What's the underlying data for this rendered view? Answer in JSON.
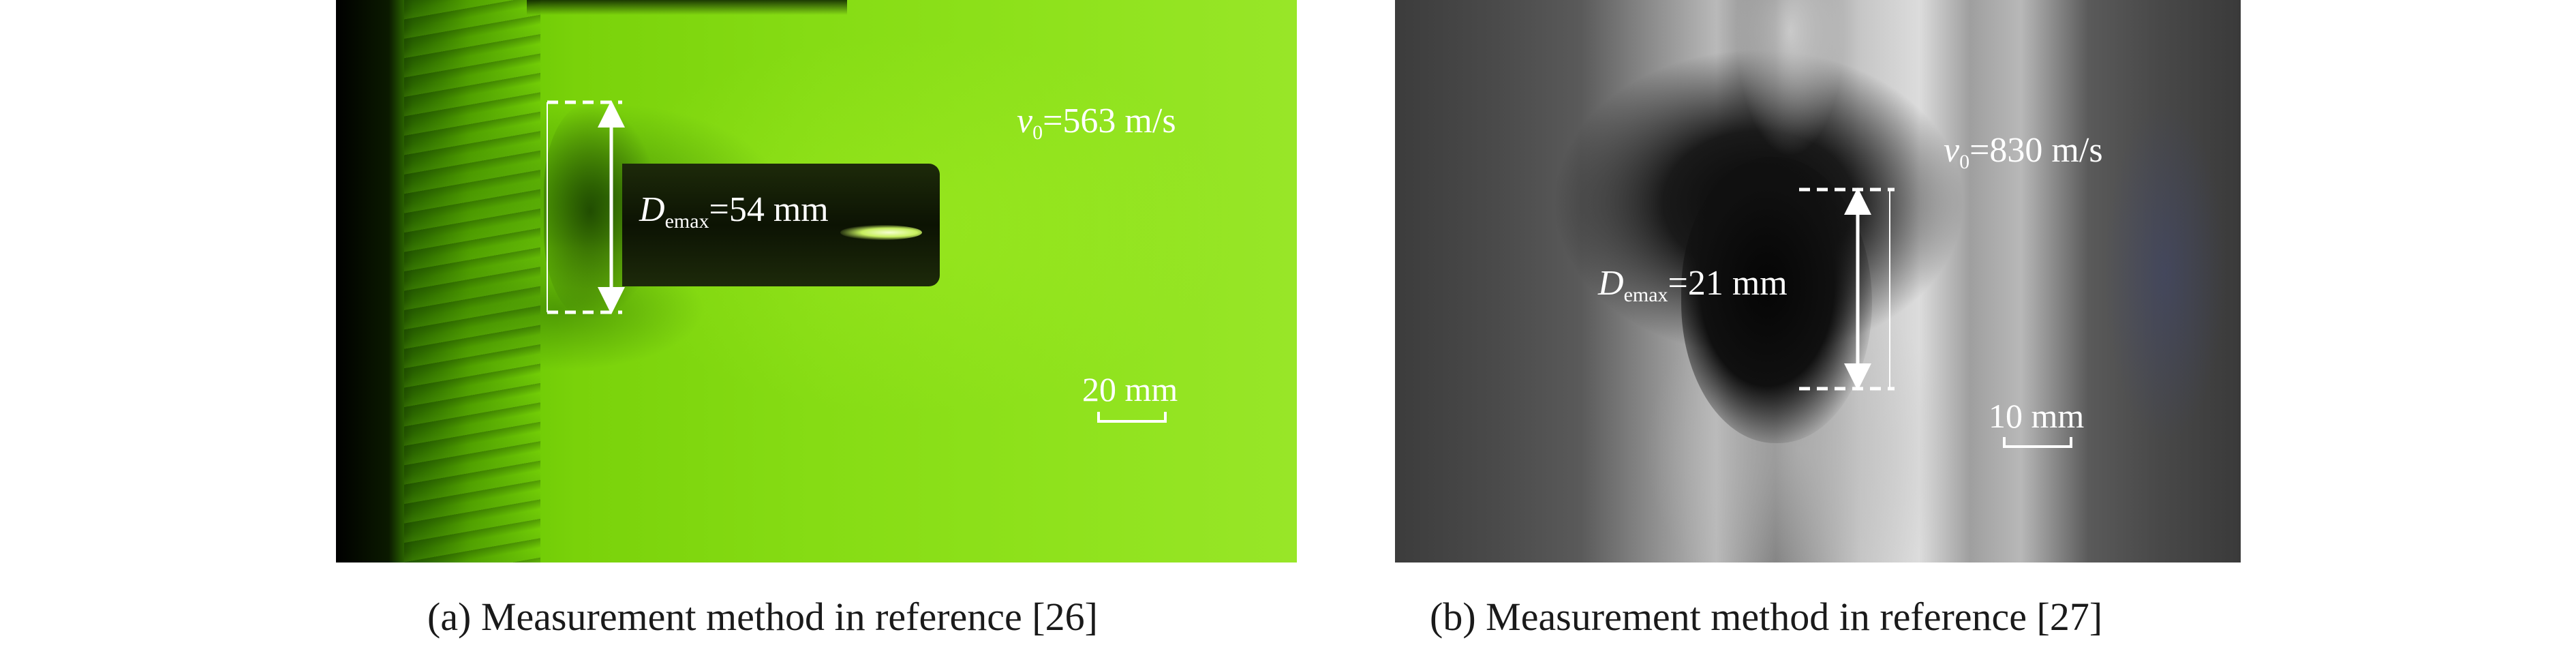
{
  "panel_a": {
    "velocity_symbol": "v",
    "velocity_subscript": "0",
    "velocity_value": "=563 m/s",
    "diameter_symbol": "D",
    "diameter_subscript": "emax",
    "diameter_value": "=54 mm",
    "scale_label": "20 mm",
    "caption": "(a) Measurement method in reference [26]"
  },
  "panel_b": {
    "velocity_symbol": "v",
    "velocity_subscript": "0",
    "velocity_value": "=830 m/s",
    "diameter_symbol": "D",
    "diameter_subscript": "emax",
    "diameter_value": "=21 mm",
    "scale_label": "10 mm",
    "caption": "(b) Measurement method in reference [27]"
  },
  "colors": {
    "panel_a_base": "#7ad20a",
    "panel_b_base": "#5a5a5a",
    "annotation": "#ffffff",
    "caption_text": "#1a1a1a"
  }
}
